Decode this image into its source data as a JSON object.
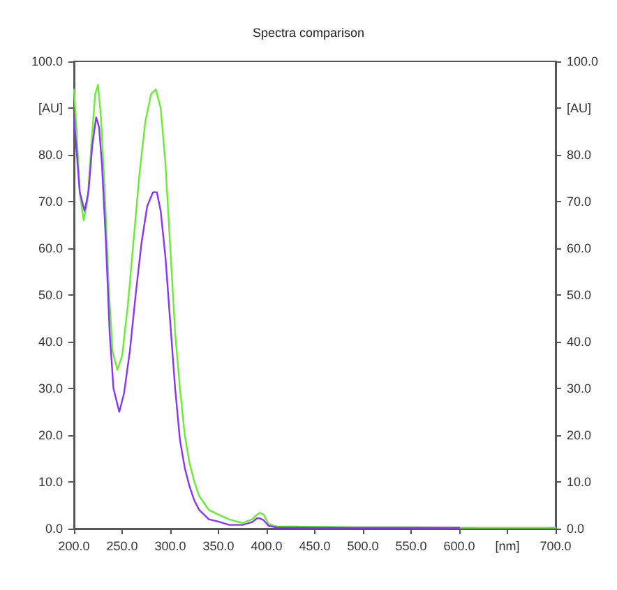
{
  "chart_data": {
    "type": "line",
    "title": "Spectra comparison",
    "xlim": [
      200,
      700
    ],
    "xticks": [
      {
        "value": 200,
        "label": "200.0"
      },
      {
        "value": 250,
        "label": "250.0"
      },
      {
        "value": 300,
        "label": "300.0"
      },
      {
        "value": 350,
        "label": "350.0"
      },
      {
        "value": 400,
        "label": "400.0"
      },
      {
        "value": 450,
        "label": "450.0"
      },
      {
        "value": 500,
        "label": "500.0"
      },
      {
        "value": 550,
        "label": "550.0"
      },
      {
        "value": 600,
        "label": "600.0"
      },
      {
        "value": 650,
        "label": "[nm]"
      },
      {
        "value": 700,
        "label": "700.0"
      }
    ],
    "ylim": [
      0,
      100
    ],
    "yticks": [
      {
        "value": 0,
        "label": "0.0"
      },
      {
        "value": 10,
        "label": "10.0"
      },
      {
        "value": 20,
        "label": "20.0"
      },
      {
        "value": 30,
        "label": "30.0"
      },
      {
        "value": 40,
        "label": "40.0"
      },
      {
        "value": 50,
        "label": "50.0"
      },
      {
        "value": 60,
        "label": "60.0"
      },
      {
        "value": 70,
        "label": "70.0"
      },
      {
        "value": 80,
        "label": "80.0"
      },
      {
        "value": 90,
        "label": "[AU]"
      },
      {
        "value": 100,
        "label": "100.0"
      }
    ],
    "y2lim": [
      0,
      100
    ],
    "y2ticks": [
      {
        "value": 0,
        "label": "0.0"
      },
      {
        "value": 10,
        "label": "10.0"
      },
      {
        "value": 20,
        "label": "20.0"
      },
      {
        "value": 30,
        "label": "30.0"
      },
      {
        "value": 40,
        "label": "40.0"
      },
      {
        "value": 50,
        "label": "50.0"
      },
      {
        "value": 60,
        "label": "60.0"
      },
      {
        "value": 70,
        "label": "70.0"
      },
      {
        "value": 80,
        "label": "80.0"
      },
      {
        "value": 90,
        "label": "[AU]"
      },
      {
        "value": 100,
        "label": "100.0"
      }
    ],
    "grid": false,
    "marker": "none",
    "line_style": "solid",
    "series": [
      {
        "color": "#66ee33",
        "x": [
          200,
          203,
          206,
          210,
          214,
          218,
          222,
          225,
          228,
          232,
          236,
          240,
          245,
          250,
          256,
          262,
          268,
          274,
          280,
          285,
          290,
          295,
          300,
          305,
          310,
          315,
          320,
          325,
          330,
          340,
          350,
          361,
          375,
          385,
          390,
          393,
          397,
          402,
          410,
          450,
          500,
          550,
          600,
          650,
          700
        ],
        "values": [
          94,
          84,
          72,
          66,
          70,
          82,
          93,
          95,
          88,
          72,
          52,
          38,
          34,
          37,
          48,
          62,
          76,
          87,
          93,
          94,
          90,
          78,
          60,
          42,
          30,
          20,
          14,
          10,
          7,
          4,
          3,
          2,
          1.2,
          2,
          3,
          3.4,
          3,
          1,
          0.5,
          0.4,
          0.3,
          0.3,
          0.2,
          0.2,
          0.2
        ]
      },
      {
        "color": "#8833ff",
        "x": [
          200,
          203,
          206,
          211,
          215,
          219,
          223,
          226,
          229,
          233,
          237,
          241,
          247,
          252,
          258,
          264,
          270,
          276,
          282,
          286,
          290,
          295,
          300,
          305,
          310,
          315,
          320,
          325,
          330,
          340,
          350,
          361,
          375,
          385,
          390,
          393,
          397,
          402,
          410,
          450,
          500,
          550,
          600
        ],
        "values": [
          88,
          80,
          72,
          68,
          72,
          82,
          88,
          86,
          78,
          62,
          42,
          30,
          25,
          29,
          38,
          50,
          61,
          69,
          72,
          72,
          68,
          58,
          44,
          30,
          19,
          13,
          9,
          6,
          4,
          2,
          1.5,
          0.8,
          0.8,
          1.4,
          2.2,
          2.2,
          1.8,
          0.6,
          0.3,
          0.2,
          0.2,
          0.2,
          0.2
        ]
      }
    ]
  }
}
